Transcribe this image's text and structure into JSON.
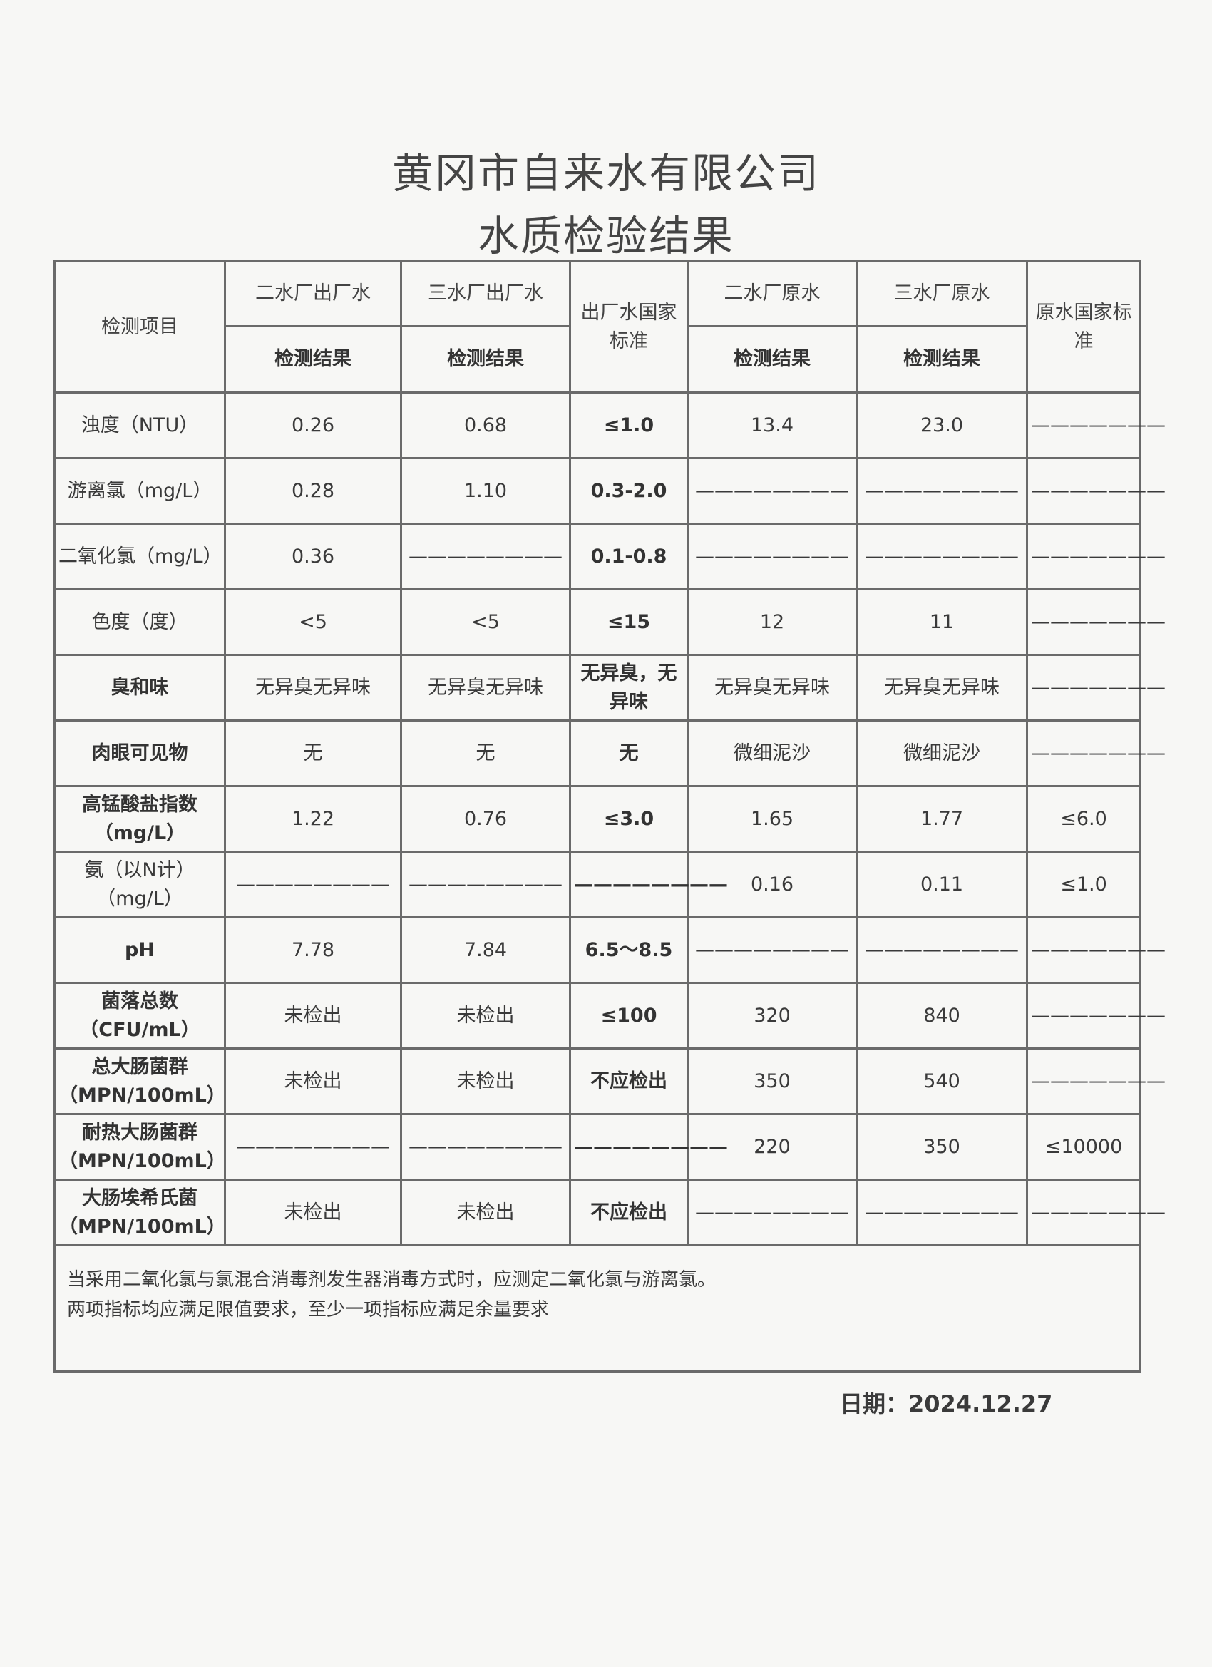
{
  "title": "黄冈市自来水有限公司",
  "subtitle": "水质检验结果",
  "header": {
    "item": "检测项目",
    "col1": "二水厂出厂水",
    "col2": "三水厂出厂水",
    "std_out": "出厂水国家标准",
    "col3": "二水厂原水",
    "col4": "三水厂原水",
    "std_raw": "原水国家标准",
    "result": "检测结果"
  },
  "rows": [
    {
      "item": "浊度（NTU）",
      "values": [
        "0.26",
        "0.68",
        "≤1.0",
        "13.4",
        "23.0",
        "———————"
      ]
    },
    {
      "item": "游离氯（mg/L）",
      "values": [
        "0.28",
        "1.10",
        "0.3-2.0",
        "————————",
        "————————",
        "———————"
      ]
    },
    {
      "item": "二氧化氯（mg/L）",
      "values": [
        "0.36",
        "————————",
        "0.1-0.8",
        "————————",
        "————————",
        "———————"
      ]
    },
    {
      "item": "色度（度）",
      "values": [
        "<5",
        "<5",
        "≤15",
        "12",
        "11",
        "———————"
      ]
    },
    {
      "item": "臭和味",
      "values": [
        "无异臭无异味",
        "无异臭无异味",
        "无异臭，无异味",
        "无异臭无异味",
        "无异臭无异味",
        "———————"
      ]
    },
    {
      "item": "肉眼可见物",
      "values": [
        "无",
        "无",
        "无",
        "微细泥沙",
        "微细泥沙",
        "———————"
      ]
    },
    {
      "item": "高锰酸盐指数（mg/L）",
      "values": [
        "1.22",
        "0.76",
        "≤3.0",
        "1.65",
        "1.77",
        "≤6.0"
      ]
    },
    {
      "item": "氨（以N计）（mg/L）",
      "values": [
        "————————",
        "————————",
        "————————",
        "0.16",
        "0.11",
        "≤1.0"
      ]
    },
    {
      "item": "pH",
      "values": [
        "7.78",
        "7.84",
        "6.5～8.5",
        "————————",
        "————————",
        "———————"
      ]
    },
    {
      "item": "菌落总数（CFU/mL）",
      "values": [
        "未检出",
        "未检出",
        "≤100",
        "320",
        "840",
        "———————"
      ]
    },
    {
      "item": "总大肠菌群（MPN/100mL）",
      "values": [
        "未检出",
        "未检出",
        "不应检出",
        "350",
        "540",
        "———————"
      ]
    },
    {
      "item": "耐热大肠菌群（MPN/100mL）",
      "values": [
        "————————",
        "————————",
        "————————",
        "220",
        "350",
        "≤10000"
      ]
    },
    {
      "item": "大肠埃希氏菌（MPN/100mL）",
      "values": [
        "未检出",
        "未检出",
        "不应检出",
        "————————",
        "————————",
        "———————"
      ]
    }
  ],
  "note": {
    "line1": "当采用二氧化氯与氯混合消毒剂发生器消毒方式时，应测定二氧化氯与游离氯。",
    "line2": "两项指标均应满足限值要求，至少一项指标应满足余量要求"
  },
  "date": "日期：2024.12.27"
}
